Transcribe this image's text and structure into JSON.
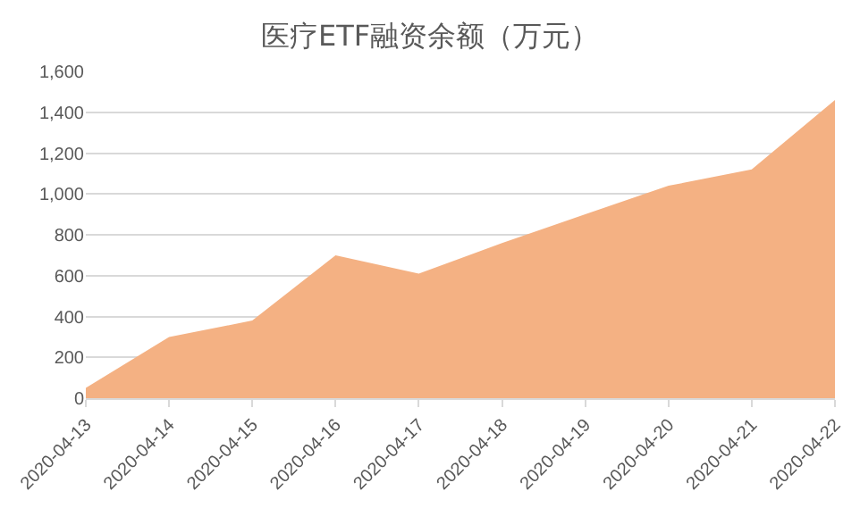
{
  "chart_data": {
    "type": "area",
    "title": "医疗ETF融资余额（万元）",
    "categories": [
      "2020-04-13",
      "2020-04-14",
      "2020-04-15",
      "2020-04-16",
      "2020-04-17",
      "2020-04-18",
      "2020-04-19",
      "2020-04-20",
      "2020-04-21",
      "2020-04-22"
    ],
    "values": [
      50,
      300,
      380,
      700,
      610,
      760,
      900,
      1040,
      1120,
      1460
    ],
    "color": "#f4b183",
    "ylim": [
      0,
      1600
    ],
    "yticks": [
      {
        "value": 0,
        "label": "0"
      },
      {
        "value": 200,
        "label": "200"
      },
      {
        "value": 400,
        "label": "400"
      },
      {
        "value": 600,
        "label": "600"
      },
      {
        "value": 800,
        "label": "800"
      },
      {
        "value": 1000,
        "label": "1,000"
      },
      {
        "value": 1200,
        "label": "1,200"
      },
      {
        "value": 1400,
        "label": "1,400"
      },
      {
        "value": 1600,
        "label": "1,600"
      }
    ],
    "grid": "y"
  }
}
